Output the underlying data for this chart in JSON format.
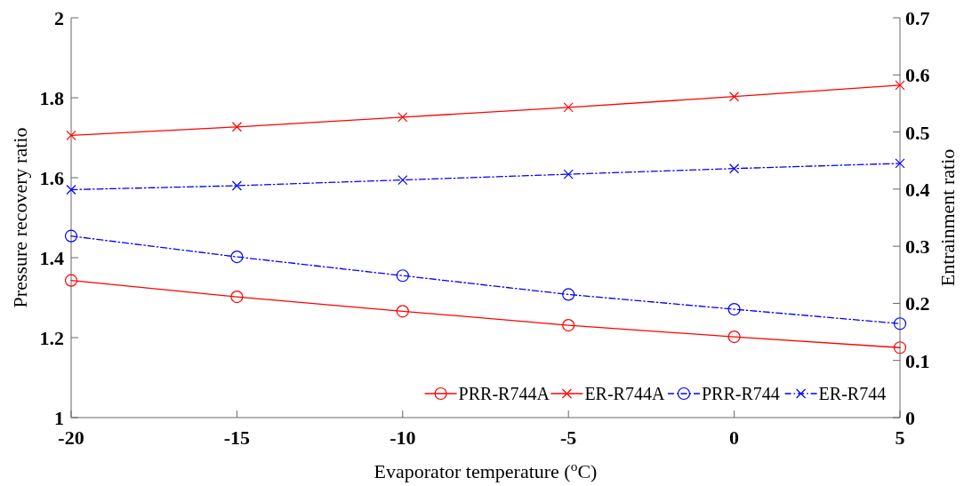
{
  "chart_data": {
    "type": "line",
    "xlabel": "Evaporator temperature ($^{o}$C)",
    "ylabel": "Pressure recovery ratio",
    "y2label": "Entrainment ratio",
    "x": [
      -20,
      -15,
      -10,
      -5,
      0,
      5
    ],
    "xlim": [
      -20,
      5
    ],
    "xticks": [
      -20,
      -15,
      -10,
      -5,
      0,
      5
    ],
    "ylim": [
      1,
      2
    ],
    "yticks": [
      1,
      1.2,
      1.4,
      1.6,
      1.8,
      2
    ],
    "y2lim": [
      0,
      0.7
    ],
    "y2ticks": [
      0,
      0.1,
      0.2,
      0.3,
      0.4,
      0.5,
      0.6,
      0.7
    ],
    "grid": false,
    "legend": "bottom right",
    "series": [
      {
        "name": "PRR-R744A",
        "color": "#ff0000",
        "marker": "circle",
        "line_style": "solid",
        "values": [
          1.343,
          1.302,
          1.266,
          1.231,
          1.202,
          1.175
        ]
      },
      {
        "name": "ER-R744A",
        "color": "#ff0000",
        "marker": "cross",
        "line_style": "solid",
        "axis": "y2",
        "values": [
          0.494,
          0.509,
          0.526,
          0.543,
          0.562,
          0.582
        ]
      },
      {
        "name": "PRR-R744",
        "color": "#0000ff",
        "marker": "circle",
        "line_style": "dashed",
        "values": [
          1.454,
          1.402,
          1.355,
          1.308,
          1.271,
          1.235
        ]
      },
      {
        "name": "ER-R744",
        "color": "#0000ff",
        "marker": "cross",
        "line_style": "dashed",
        "axis": "y2",
        "values": [
          0.399,
          0.406,
          0.416,
          0.426,
          0.436,
          0.445
        ]
      }
    ]
  }
}
